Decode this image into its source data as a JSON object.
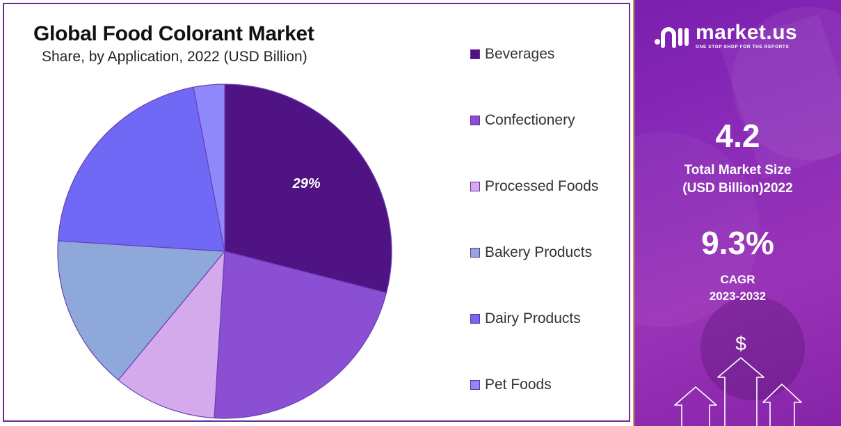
{
  "chart_data": {
    "type": "pie",
    "title": "Global Food Colorant Market",
    "subtitle": "Share, by Application, 2022 (USD Billion)",
    "categories": [
      "Beverages",
      "Confectionery",
      "Processed Foods",
      "Bakery Products",
      "Dairy Products",
      "Pet Foods"
    ],
    "values": [
      29,
      22,
      10,
      15,
      21,
      3
    ],
    "data_labels": [
      "29%",
      "",
      "",
      "",
      "",
      ""
    ],
    "colors": [
      "#4f1383",
      "#8a4fd2",
      "#d4aaec",
      "#8ea8d9",
      "#7069f5",
      "#8f88fb"
    ],
    "legend_position": "right",
    "start_angle": "top",
    "direction": "clockwise"
  },
  "brand": {
    "name": "market.us",
    "tagline": "ONE STOP SHOP FOR THE REPORTS"
  },
  "stats": {
    "market_size_value": "4.2",
    "market_size_label_line1": "Total Market Size",
    "market_size_label_line2": "(USD Billion)2022",
    "cagr_value": "9.3%",
    "cagr_label_line1": "CAGR",
    "cagr_label_line2": "2023-2032"
  },
  "graphic": {
    "currency_symbol": "$"
  }
}
